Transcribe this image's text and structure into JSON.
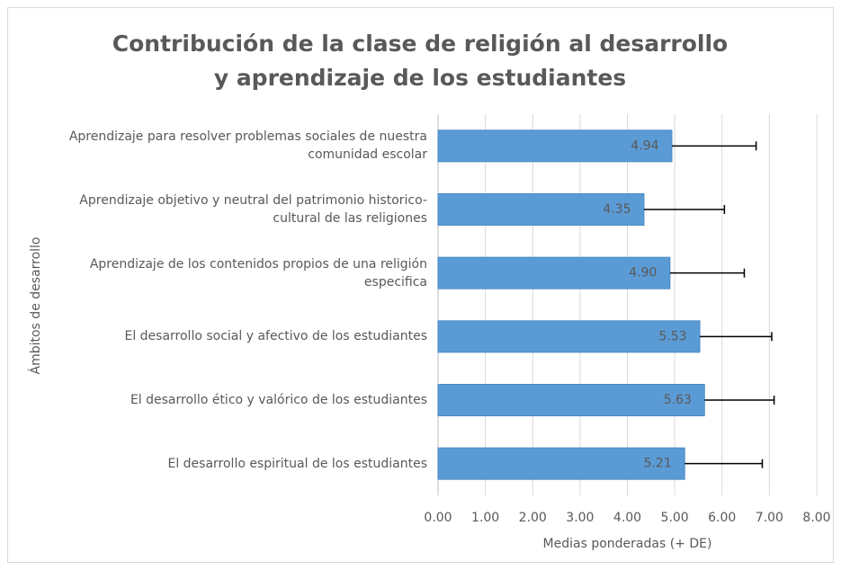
{
  "chart_data": {
    "type": "hbar",
    "title": "Contribución de la clase de religión al desarrollo y aprendizaje de los estudiantes",
    "xlabel": "Medias ponderadas (+ DE)",
    "ylabel": "Ámbitos de desarrollo",
    "categories": [
      "Aprendizaje para resolver problemas sociales de nuestra comunidad escolar",
      "Aprendizaje objetivo y neutral del patrimonio historico-cultural de las religiones",
      "Aprendizaje de los contenidos propios de una religión especifica",
      "El desarrollo social y afectivo de los estudiantes",
      "El desarrollo ético y valórico de los estudiantes",
      "El desarrollo espiritual de los estudiantes"
    ],
    "values": [
      4.94,
      4.35,
      4.9,
      5.53,
      5.63,
      5.21
    ],
    "value_labels": [
      "4.94",
      "4.35",
      "4.90",
      "5.53",
      "5.63",
      "5.21"
    ],
    "errors": [
      1.78,
      1.7,
      1.57,
      1.52,
      1.47,
      1.64
    ],
    "color": "#5b9bd5",
    "xlim": [
      0,
      8
    ],
    "xticks": [
      {
        "value": 0,
        "label": "0.00"
      },
      {
        "value": 1,
        "label": "1.00"
      },
      {
        "value": 2,
        "label": "2.00"
      },
      {
        "value": 3,
        "label": "3.00"
      },
      {
        "value": 4,
        "label": "4.00"
      },
      {
        "value": 5,
        "label": "5.00"
      },
      {
        "value": 6,
        "label": "6.00"
      },
      {
        "value": 7,
        "label": "7.00"
      },
      {
        "value": 8,
        "label": "8.00"
      }
    ],
    "grid": true
  }
}
